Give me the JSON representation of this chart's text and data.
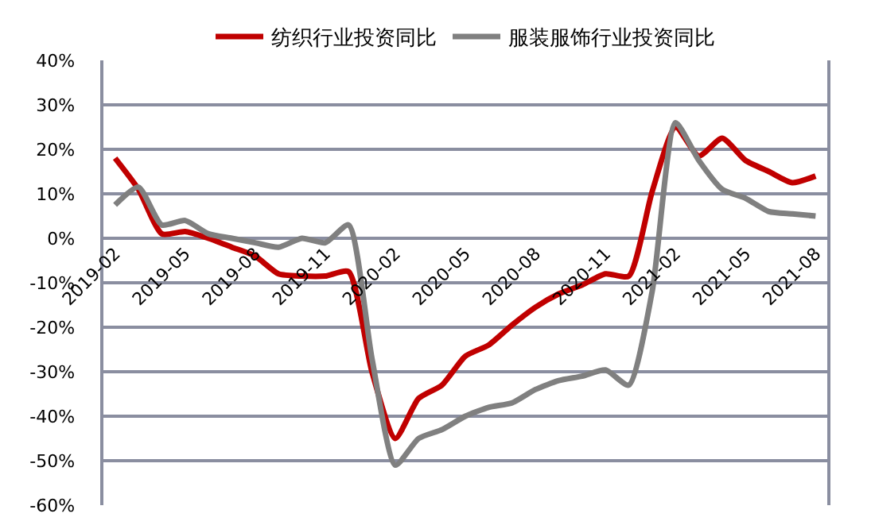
{
  "chart_data": {
    "type": "line",
    "categories": [
      "2019-02",
      null,
      null,
      "2019-05",
      null,
      null,
      "2019-08",
      null,
      null,
      "2019-11",
      null,
      null,
      "2020-02",
      null,
      null,
      "2020-05",
      null,
      null,
      "2020-08",
      null,
      null,
      "2020-11",
      null,
      null,
      "2021-02",
      null,
      null,
      "2021-05",
      null,
      null,
      "2021-08"
    ],
    "series": [
      {
        "name": "纺织行业投资同比",
        "color": "#c00000",
        "values": [
          18,
          11,
          1,
          1.5,
          0,
          -2,
          -4,
          -8,
          -8.5,
          -8.5,
          -7.5,
          -30,
          -45,
          -36,
          -33,
          -26.5,
          -24,
          -19.5,
          -15.5,
          -12.5,
          -10.5,
          -8,
          -8.5,
          10.5,
          25,
          18.5,
          22.5,
          17.5,
          15,
          12.5,
          14
        ]
      },
      {
        "name": "服装服饰行业投资同比",
        "color": "#808080",
        "values": [
          7.5,
          11.5,
          3,
          4,
          1,
          0,
          -1,
          -2,
          0,
          -1,
          3,
          -27,
          -51,
          -45,
          -43,
          -40,
          -38,
          -37,
          -34,
          -32,
          -31,
          -29.6,
          -33,
          -12,
          26,
          17.5,
          11,
          9,
          6,
          5.5,
          5
        ]
      }
    ],
    "ylim": [
      -60,
      40
    ],
    "yticks": [
      {
        "value": -60,
        "label": "-60%"
      },
      {
        "value": -50,
        "label": "-50%"
      },
      {
        "value": -40,
        "label": "-40%"
      },
      {
        "value": -30,
        "label": "-30%"
      },
      {
        "value": -20,
        "label": "-20%"
      },
      {
        "value": -10,
        "label": "-10%"
      },
      {
        "value": 0,
        "label": "0%"
      },
      {
        "value": 10,
        "label": "10%"
      },
      {
        "value": 20,
        "label": "20%"
      },
      {
        "value": 30,
        "label": "30%"
      },
      {
        "value": 40,
        "label": "40%"
      }
    ],
    "grid": "y",
    "legend": "top",
    "marker": "none",
    "line_style": "solid"
  }
}
